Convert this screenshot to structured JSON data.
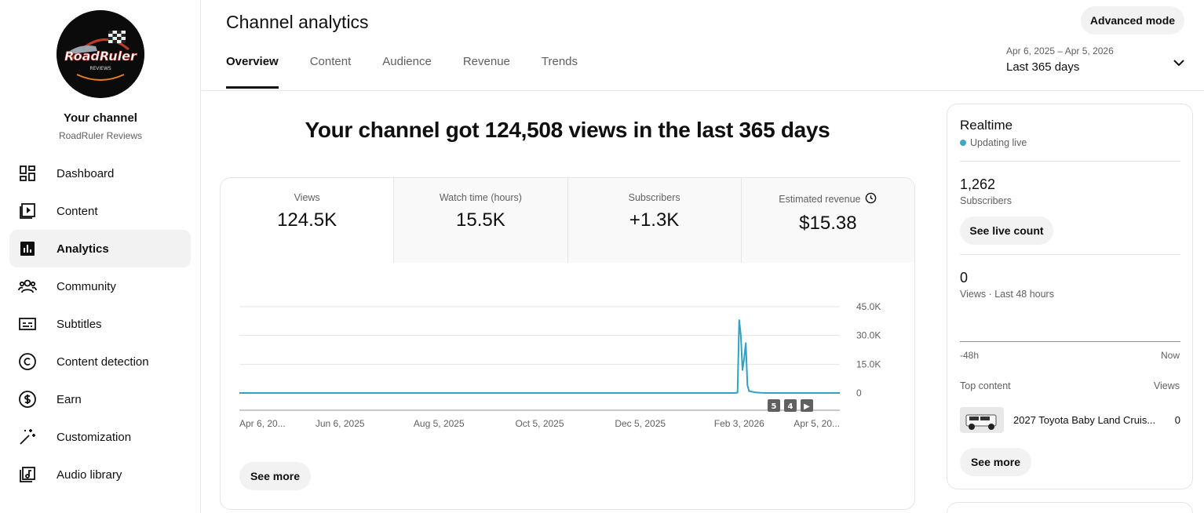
{
  "sidebar": {
    "channel_title": "Your channel",
    "channel_name": "RoadRuler Reviews",
    "logo_text": "RoadRuler",
    "logo_subtext": "REVIEWS",
    "items": [
      {
        "label": "Dashboard",
        "icon": "dashboard-icon"
      },
      {
        "label": "Content",
        "icon": "content-icon"
      },
      {
        "label": "Analytics",
        "icon": "analytics-icon",
        "active": true
      },
      {
        "label": "Community",
        "icon": "community-icon"
      },
      {
        "label": "Subtitles",
        "icon": "subtitles-icon"
      },
      {
        "label": "Content detection",
        "icon": "copyright-icon"
      },
      {
        "label": "Earn",
        "icon": "dollar-icon"
      },
      {
        "label": "Customization",
        "icon": "magic-wand-icon"
      },
      {
        "label": "Audio library",
        "icon": "audio-library-icon"
      }
    ]
  },
  "header": {
    "title": "Channel analytics",
    "advanced_label": "Advanced mode",
    "tabs": [
      "Overview",
      "Content",
      "Audience",
      "Revenue",
      "Trends"
    ],
    "date_range": "Apr 6, 2025 – Apr 5, 2026",
    "date_period": "Last 365 days"
  },
  "headline": "Your channel got 124,508 views in the last 365 days",
  "metrics": [
    {
      "label": "Views",
      "value": "124.5K"
    },
    {
      "label": "Watch time (hours)",
      "value": "15.5K"
    },
    {
      "label": "Subscribers",
      "value": "+1.3K"
    },
    {
      "label": "Estimated revenue",
      "value": "$15.38"
    }
  ],
  "chart_data": {
    "type": "line",
    "x_tick_labels": [
      "Apr 6, 20...",
      "Jun 6, 2025",
      "Aug 5, 2025",
      "Oct 5, 2025",
      "Dec 5, 2025",
      "Feb 3, 2026",
      "Apr 5, 20..."
    ],
    "y_tick_labels": [
      "45.0K",
      "30.0K",
      "15.0K",
      "0"
    ],
    "ylim": [
      0,
      45000
    ],
    "xlim_days": [
      0,
      364
    ],
    "series": [
      {
        "color": "#2ba3c3",
        "points": [
          [
            0,
            0
          ],
          [
            300,
            0
          ],
          [
            302,
            150
          ],
          [
            303,
            38000
          ],
          [
            304,
            30000
          ],
          [
            305,
            12000
          ],
          [
            306,
            18000
          ],
          [
            307,
            26000
          ],
          [
            308,
            4000
          ],
          [
            309,
            1000
          ],
          [
            311,
            600
          ],
          [
            313,
            300
          ],
          [
            316,
            100
          ],
          [
            320,
            0
          ],
          [
            364,
            0
          ]
        ]
      }
    ],
    "markers": [
      "5",
      "4",
      "▶"
    ],
    "grid": true
  },
  "see_more_label": "See more",
  "realtime": {
    "title": "Realtime",
    "live_label": "Updating live",
    "subscribers": "1,262",
    "subscribers_label": "Subscribers",
    "live_count_label": "See live count",
    "views": "0",
    "views_label": "Views · Last 48 hours",
    "axis_left": "-48h",
    "axis_right": "Now",
    "top_content_label": "Top content",
    "top_content_views_label": "Views",
    "top_item_title": "2027 Toyota Baby Land Cruis...",
    "top_item_views": "0",
    "see_more_label": "See more"
  },
  "colors": {
    "accent": "#2ba3c3",
    "live_dot": "#3ea6c8"
  }
}
